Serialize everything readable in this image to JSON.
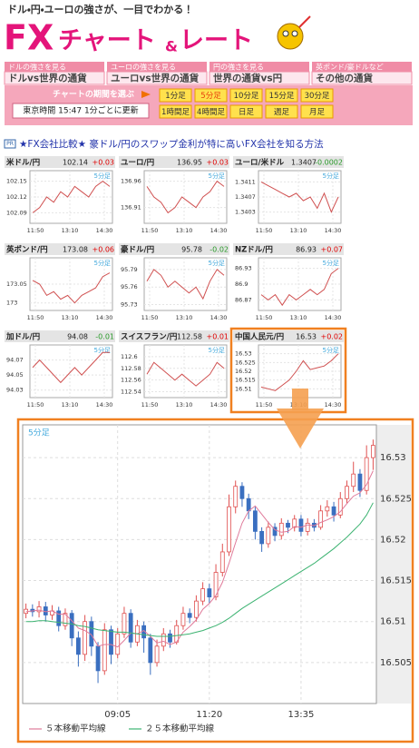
{
  "header": {
    "tagline": "ドル・円・ユーロの強さが、一目でわかる！",
    "title_fx": "FX",
    "title_chart": "チャート",
    "title_amp": "&",
    "title_rate": "レート"
  },
  "tabs": [
    {
      "small": "ドルの強さを見る",
      "label": "ドルvs世界の通貨"
    },
    {
      "small": "ユーロの強さを見る",
      "label": "ユーロvs世界の通貨"
    },
    {
      "small": "円の強さを見る",
      "label": "世界の通貨vs円"
    },
    {
      "small": "英ポンド/豪ドルなど",
      "label": "その他の通貨"
    }
  ],
  "period": {
    "prompt": "チャートの期間を選ぶ",
    "buttons": [
      "1分足",
      "5分足",
      "10分足",
      "15分足",
      "30分足",
      "1時間足",
      "4時間足",
      "日足",
      "週足",
      "月足"
    ],
    "selected": 1,
    "status": "東京時間 15:47 1分ごとに更新"
  },
  "pr": {
    "badge": "PR",
    "link": "★FX会社比較★ 豪ドル/円のスワップ金利が特に高いFX会社を知る方法"
  },
  "mini_xlabels": [
    "11:50",
    "13:10",
    "14:30"
  ],
  "panels": [
    {
      "name": "米ドル/円",
      "rate": "102.14",
      "change": "+0.03",
      "change_color": "#e00000",
      "ylim": [
        102.07,
        102.17
      ],
      "yticks": [
        102.15,
        102.12,
        102.09
      ],
      "values": [
        102.09,
        102.1,
        102.12,
        102.11,
        102.13,
        102.12,
        102.14,
        102.13,
        102.12,
        102.14,
        102.15,
        102.14
      ]
    },
    {
      "name": "ユーロ/円",
      "rate": "136.95",
      "change": "+0.03",
      "change_color": "#e00000",
      "ylim": [
        136.88,
        136.98
      ],
      "yticks": [
        136.96,
        136.91
      ],
      "values": [
        136.95,
        136.93,
        136.92,
        136.9,
        136.91,
        136.93,
        136.92,
        136.91,
        136.93,
        136.94,
        136.96,
        136.95
      ]
    },
    {
      "name": "ユーロ/米ドル",
      "rate": "1.3407",
      "change": "-0.0002",
      "change_color": "#2a9a2a",
      "ylim": [
        1.34,
        1.3414
      ],
      "yticks": [
        1.3411,
        1.3407,
        1.3403
      ],
      "values": [
        1.3411,
        1.341,
        1.3409,
        1.3408,
        1.3407,
        1.3408,
        1.3406,
        1.3407,
        1.3404,
        1.3408,
        1.3403,
        1.3407
      ]
    },
    {
      "name": "英ポンド/円",
      "rate": "173.08",
      "change": "+0.06",
      "change_color": "#e00000",
      "ylim": [
        172.98,
        173.12
      ],
      "yticks": [
        173.05,
        173
      ],
      "values": [
        173.06,
        173.05,
        173.02,
        173.03,
        173.01,
        173.02,
        173,
        173.02,
        173.03,
        173.04,
        173.07,
        173.08
      ]
    },
    {
      "name": "豪ドル/円",
      "rate": "95.78",
      "change": "-0.02",
      "change_color": "#2a9a2a",
      "ylim": [
        95.72,
        95.81
      ],
      "yticks": [
        95.79,
        95.76,
        95.73
      ],
      "values": [
        95.77,
        95.79,
        95.78,
        95.76,
        95.77,
        95.76,
        95.75,
        95.76,
        95.74,
        95.77,
        95.79,
        95.78
      ]
    },
    {
      "name": "NZドル/円",
      "rate": "86.93",
      "change": "+0.07",
      "change_color": "#e00000",
      "ylim": [
        86.85,
        86.95
      ],
      "yticks": [
        86.93,
        86.9,
        86.87
      ],
      "values": [
        86.88,
        86.87,
        86.88,
        86.86,
        86.88,
        86.87,
        86.88,
        86.89,
        86.88,
        86.89,
        86.92,
        86.93
      ]
    },
    {
      "name": "加ドル/円",
      "rate": "94.08",
      "change": "-0.01",
      "change_color": "#2a9a2a",
      "ylim": [
        94.02,
        94.09
      ],
      "yticks": [
        94.07,
        94.05,
        94.03
      ],
      "values": [
        94.06,
        94.07,
        94.06,
        94.05,
        94.04,
        94.05,
        94.06,
        94.05,
        94.06,
        94.07,
        94.08,
        94.08
      ]
    },
    {
      "name": "スイスフラン/円",
      "rate": "112.58",
      "change": "+0.01",
      "change_color": "#e00000",
      "ylim": [
        112.53,
        112.62
      ],
      "yticks": [
        112.6,
        112.58,
        112.56,
        112.54
      ],
      "values": [
        112.57,
        112.59,
        112.58,
        112.57,
        112.56,
        112.57,
        112.56,
        112.55,
        112.56,
        112.57,
        112.59,
        112.58
      ]
    },
    {
      "name": "中国人民元/円",
      "rate": "16.53",
      "change": "+0.02",
      "change_color": "#e00000",
      "ylim": [
        16.505,
        16.535
      ],
      "yticks": [
        16.53,
        16.525,
        16.52,
        16.515,
        16.51
      ],
      "values": [
        16.511,
        16.51,
        16.509,
        16.512,
        16.515,
        16.52,
        16.526,
        16.521,
        16.522,
        16.523,
        16.526,
        16.53
      ]
    }
  ],
  "selected_panel": 8,
  "chart_data": {
    "type": "candlestick",
    "period_label": "5分足",
    "categories": [
      null,
      null,
      null,
      null,
      null,
      null,
      null,
      null,
      null,
      null,
      null,
      null,
      null,
      null,
      "09:05",
      null,
      null,
      null,
      null,
      null,
      null,
      null,
      null,
      null,
      null,
      null,
      null,
      null,
      "11:20",
      null,
      null,
      null,
      null,
      null,
      null,
      null,
      null,
      null,
      null,
      null,
      null,
      null,
      "13:35",
      null,
      null,
      null,
      null,
      null,
      null,
      null,
      null,
      null,
      null,
      null
    ],
    "opens": [
      16.511,
      16.5115,
      16.5112,
      16.5118,
      16.5108,
      16.5113,
      16.5095,
      16.511,
      16.508,
      16.506,
      16.51,
      16.507,
      16.504,
      16.509,
      16.506,
      16.5085,
      16.511,
      16.5075,
      16.5095,
      16.508,
      16.505,
      16.507,
      16.5085,
      16.5075,
      16.5095,
      16.511,
      16.5105,
      16.5125,
      16.514,
      16.513,
      16.516,
      16.5185,
      16.524,
      16.5265,
      16.525,
      16.5235,
      16.521,
      16.5195,
      16.5215,
      16.5205,
      16.522,
      16.5215,
      16.5225,
      16.521,
      16.522,
      16.5215,
      16.5235,
      16.524,
      16.523,
      16.525,
      16.5265,
      16.528,
      16.526,
      16.53
    ],
    "highs": [
      16.5122,
      16.5121,
      16.5125,
      16.5124,
      16.512,
      16.5118,
      16.5116,
      16.5114,
      16.5088,
      16.5108,
      16.5106,
      16.5075,
      16.5098,
      16.5095,
      16.5092,
      16.5118,
      16.5115,
      16.5102,
      16.51,
      16.5085,
      16.5078,
      16.5092,
      16.509,
      16.5102,
      16.5118,
      16.5116,
      16.5132,
      16.5148,
      16.5146,
      16.517,
      16.5195,
      16.5255,
      16.5272,
      16.527,
      16.5256,
      16.524,
      16.5215,
      16.5222,
      16.522,
      16.5226,
      16.5224,
      16.523,
      16.523,
      16.5226,
      16.5225,
      16.5242,
      16.5248,
      16.5246,
      16.5258,
      16.5272,
      16.5295,
      16.5286,
      16.5315,
      16.5322
    ],
    "lows": [
      16.5104,
      16.5106,
      16.5105,
      16.51,
      16.5102,
      16.5088,
      16.509,
      16.507,
      16.5045,
      16.5052,
      16.5058,
      16.5025,
      16.5035,
      16.5048,
      16.5055,
      16.508,
      16.5068,
      16.507,
      16.5062,
      16.5035,
      16.5045,
      16.5064,
      16.5068,
      16.5072,
      16.509,
      16.5098,
      16.51,
      16.512,
      16.5122,
      16.5126,
      16.5155,
      16.518,
      16.5232,
      16.524,
      16.5225,
      16.52,
      16.5185,
      16.519,
      16.5198,
      16.52,
      16.5208,
      16.521,
      16.5204,
      16.5205,
      16.521,
      16.5212,
      16.5228,
      16.5222,
      16.5226,
      16.5244,
      16.5258,
      16.5252,
      16.5255,
      16.5285
    ],
    "closes": [
      16.5115,
      16.5112,
      16.5118,
      16.5108,
      16.5113,
      16.5095,
      16.511,
      16.508,
      16.506,
      16.51,
      16.507,
      16.504,
      16.509,
      16.506,
      16.5085,
      16.511,
      16.5075,
      16.5095,
      16.508,
      16.505,
      16.507,
      16.5085,
      16.5075,
      16.5095,
      16.511,
      16.5105,
      16.5125,
      16.514,
      16.513,
      16.516,
      16.5185,
      16.524,
      16.5265,
      16.525,
      16.5235,
      16.521,
      16.5195,
      16.5215,
      16.5205,
      16.522,
      16.5215,
      16.5225,
      16.521,
      16.522,
      16.5215,
      16.5235,
      16.524,
      16.523,
      16.525,
      16.5265,
      16.528,
      16.526,
      16.53,
      16.5315
    ],
    "up_color": "#e05050",
    "down_color": "#3a6fc0",
    "series": [
      {
        "name": "５本移動平均線",
        "color": "#e07a9a",
        "values": [
          16.5112,
          16.5113,
          16.5114,
          16.5112,
          16.5113,
          16.5109,
          16.5109,
          16.5101,
          16.5092,
          16.5089,
          16.5084,
          16.507,
          16.5072,
          16.5072,
          16.5069,
          16.5077,
          16.5086,
          16.5085,
          16.5089,
          16.5082,
          16.5074,
          16.5076,
          16.5072,
          16.5075,
          16.5087,
          16.5094,
          16.5102,
          16.5115,
          16.5122,
          16.5132,
          16.5148,
          16.5171,
          16.5196,
          16.522,
          16.5235,
          16.5241,
          16.5231,
          16.5221,
          16.5212,
          16.5209,
          16.521,
          16.5216,
          16.5215,
          16.5218,
          16.5217,
          16.5221,
          16.5224,
          16.5228,
          16.5234,
          16.5244,
          16.5253,
          16.5257,
          16.5267,
          16.5284
        ]
      },
      {
        "name": "２５本移動平均線",
        "color": "#3cb371",
        "values": [
          16.51,
          16.51,
          16.5101,
          16.5101,
          16.51,
          16.5099,
          16.5098,
          16.5097,
          16.5095,
          16.5094,
          16.5092,
          16.509,
          16.5089,
          16.5088,
          16.5087,
          16.5087,
          16.5086,
          16.5085,
          16.5084,
          16.5083,
          16.5082,
          16.5082,
          16.5082,
          16.5083,
          16.5084,
          16.5085,
          16.5087,
          16.5089,
          16.5092,
          16.5095,
          16.5099,
          16.5104,
          16.511,
          16.5116,
          16.5121,
          16.5126,
          16.5131,
          16.5136,
          16.5141,
          16.5146,
          16.5151,
          16.5156,
          16.5161,
          16.5166,
          16.5171,
          16.5177,
          16.5183,
          16.5189,
          16.5196,
          16.5203,
          16.5211,
          16.5219,
          16.523,
          16.5245
        ]
      }
    ],
    "ylim": [
      16.5,
      16.534
    ],
    "yticks": [
      16.505,
      16.51,
      16.515,
      16.52,
      16.525,
      16.53
    ],
    "grid": true
  }
}
